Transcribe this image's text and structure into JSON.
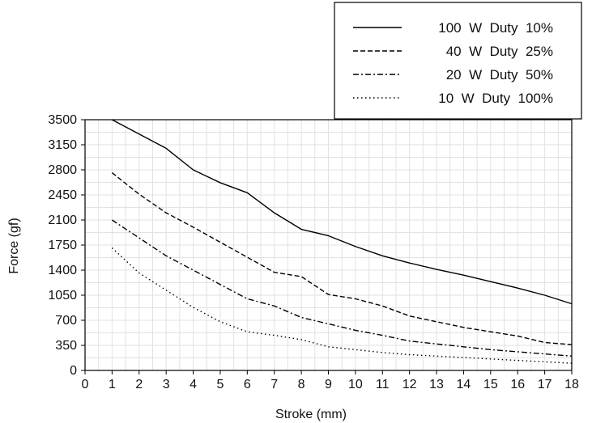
{
  "chart_data": {
    "type": "line",
    "title": "",
    "xlabel": "Stroke (mm)",
    "ylabel": "Force (gf)",
    "xlim": [
      0,
      18
    ],
    "ylim": [
      0,
      3500
    ],
    "xticks": [
      0,
      1,
      2,
      3,
      4,
      5,
      6,
      7,
      8,
      9,
      10,
      11,
      12,
      13,
      14,
      15,
      16,
      17,
      18
    ],
    "yticks": [
      0,
      350,
      700,
      1050,
      1400,
      1750,
      2100,
      2450,
      2800,
      3150,
      3500
    ],
    "grid": true,
    "legend_position": "top-right",
    "series": [
      {
        "name": "100  W  Duty  10%",
        "dash": "solid",
        "x": [
          1,
          2,
          3,
          4,
          5,
          6,
          7,
          8,
          9,
          10,
          11,
          12,
          13,
          14,
          15,
          16,
          17,
          18
        ],
        "y": [
          3500,
          3300,
          3100,
          2800,
          2620,
          2480,
          2200,
          1970,
          1880,
          1730,
          1600,
          1500,
          1410,
          1330,
          1240,
          1150,
          1050,
          930
        ]
      },
      {
        "name": "40  W  Duty  25%",
        "dash": "dashed",
        "x": [
          1,
          2,
          3,
          4,
          5,
          6,
          7,
          8,
          9,
          10,
          11,
          12,
          13,
          14,
          15,
          16,
          17,
          18
        ],
        "y": [
          2760,
          2460,
          2200,
          2000,
          1790,
          1580,
          1370,
          1310,
          1060,
          1000,
          900,
          760,
          680,
          600,
          540,
          480,
          390,
          360
        ]
      },
      {
        "name": "20  W  Duty  50%",
        "dash": "dashdot",
        "x": [
          1,
          2,
          3,
          4,
          5,
          6,
          7,
          8,
          9,
          10,
          11,
          12,
          13,
          14,
          15,
          16,
          17,
          18
        ],
        "y": [
          2100,
          1850,
          1600,
          1400,
          1200,
          1000,
          900,
          740,
          650,
          560,
          490,
          410,
          370,
          330,
          290,
          260,
          230,
          200
        ]
      },
      {
        "name": "10  W  Duty  100%",
        "dash": "dotted",
        "x": [
          1,
          2,
          3,
          4,
          5,
          6,
          7,
          8,
          9,
          10,
          11,
          12,
          13,
          14,
          15,
          16,
          17,
          18
        ],
        "y": [
          1710,
          1360,
          1120,
          880,
          680,
          540,
          490,
          430,
          330,
          290,
          250,
          220,
          200,
          180,
          160,
          140,
          120,
          100
        ]
      }
    ]
  }
}
